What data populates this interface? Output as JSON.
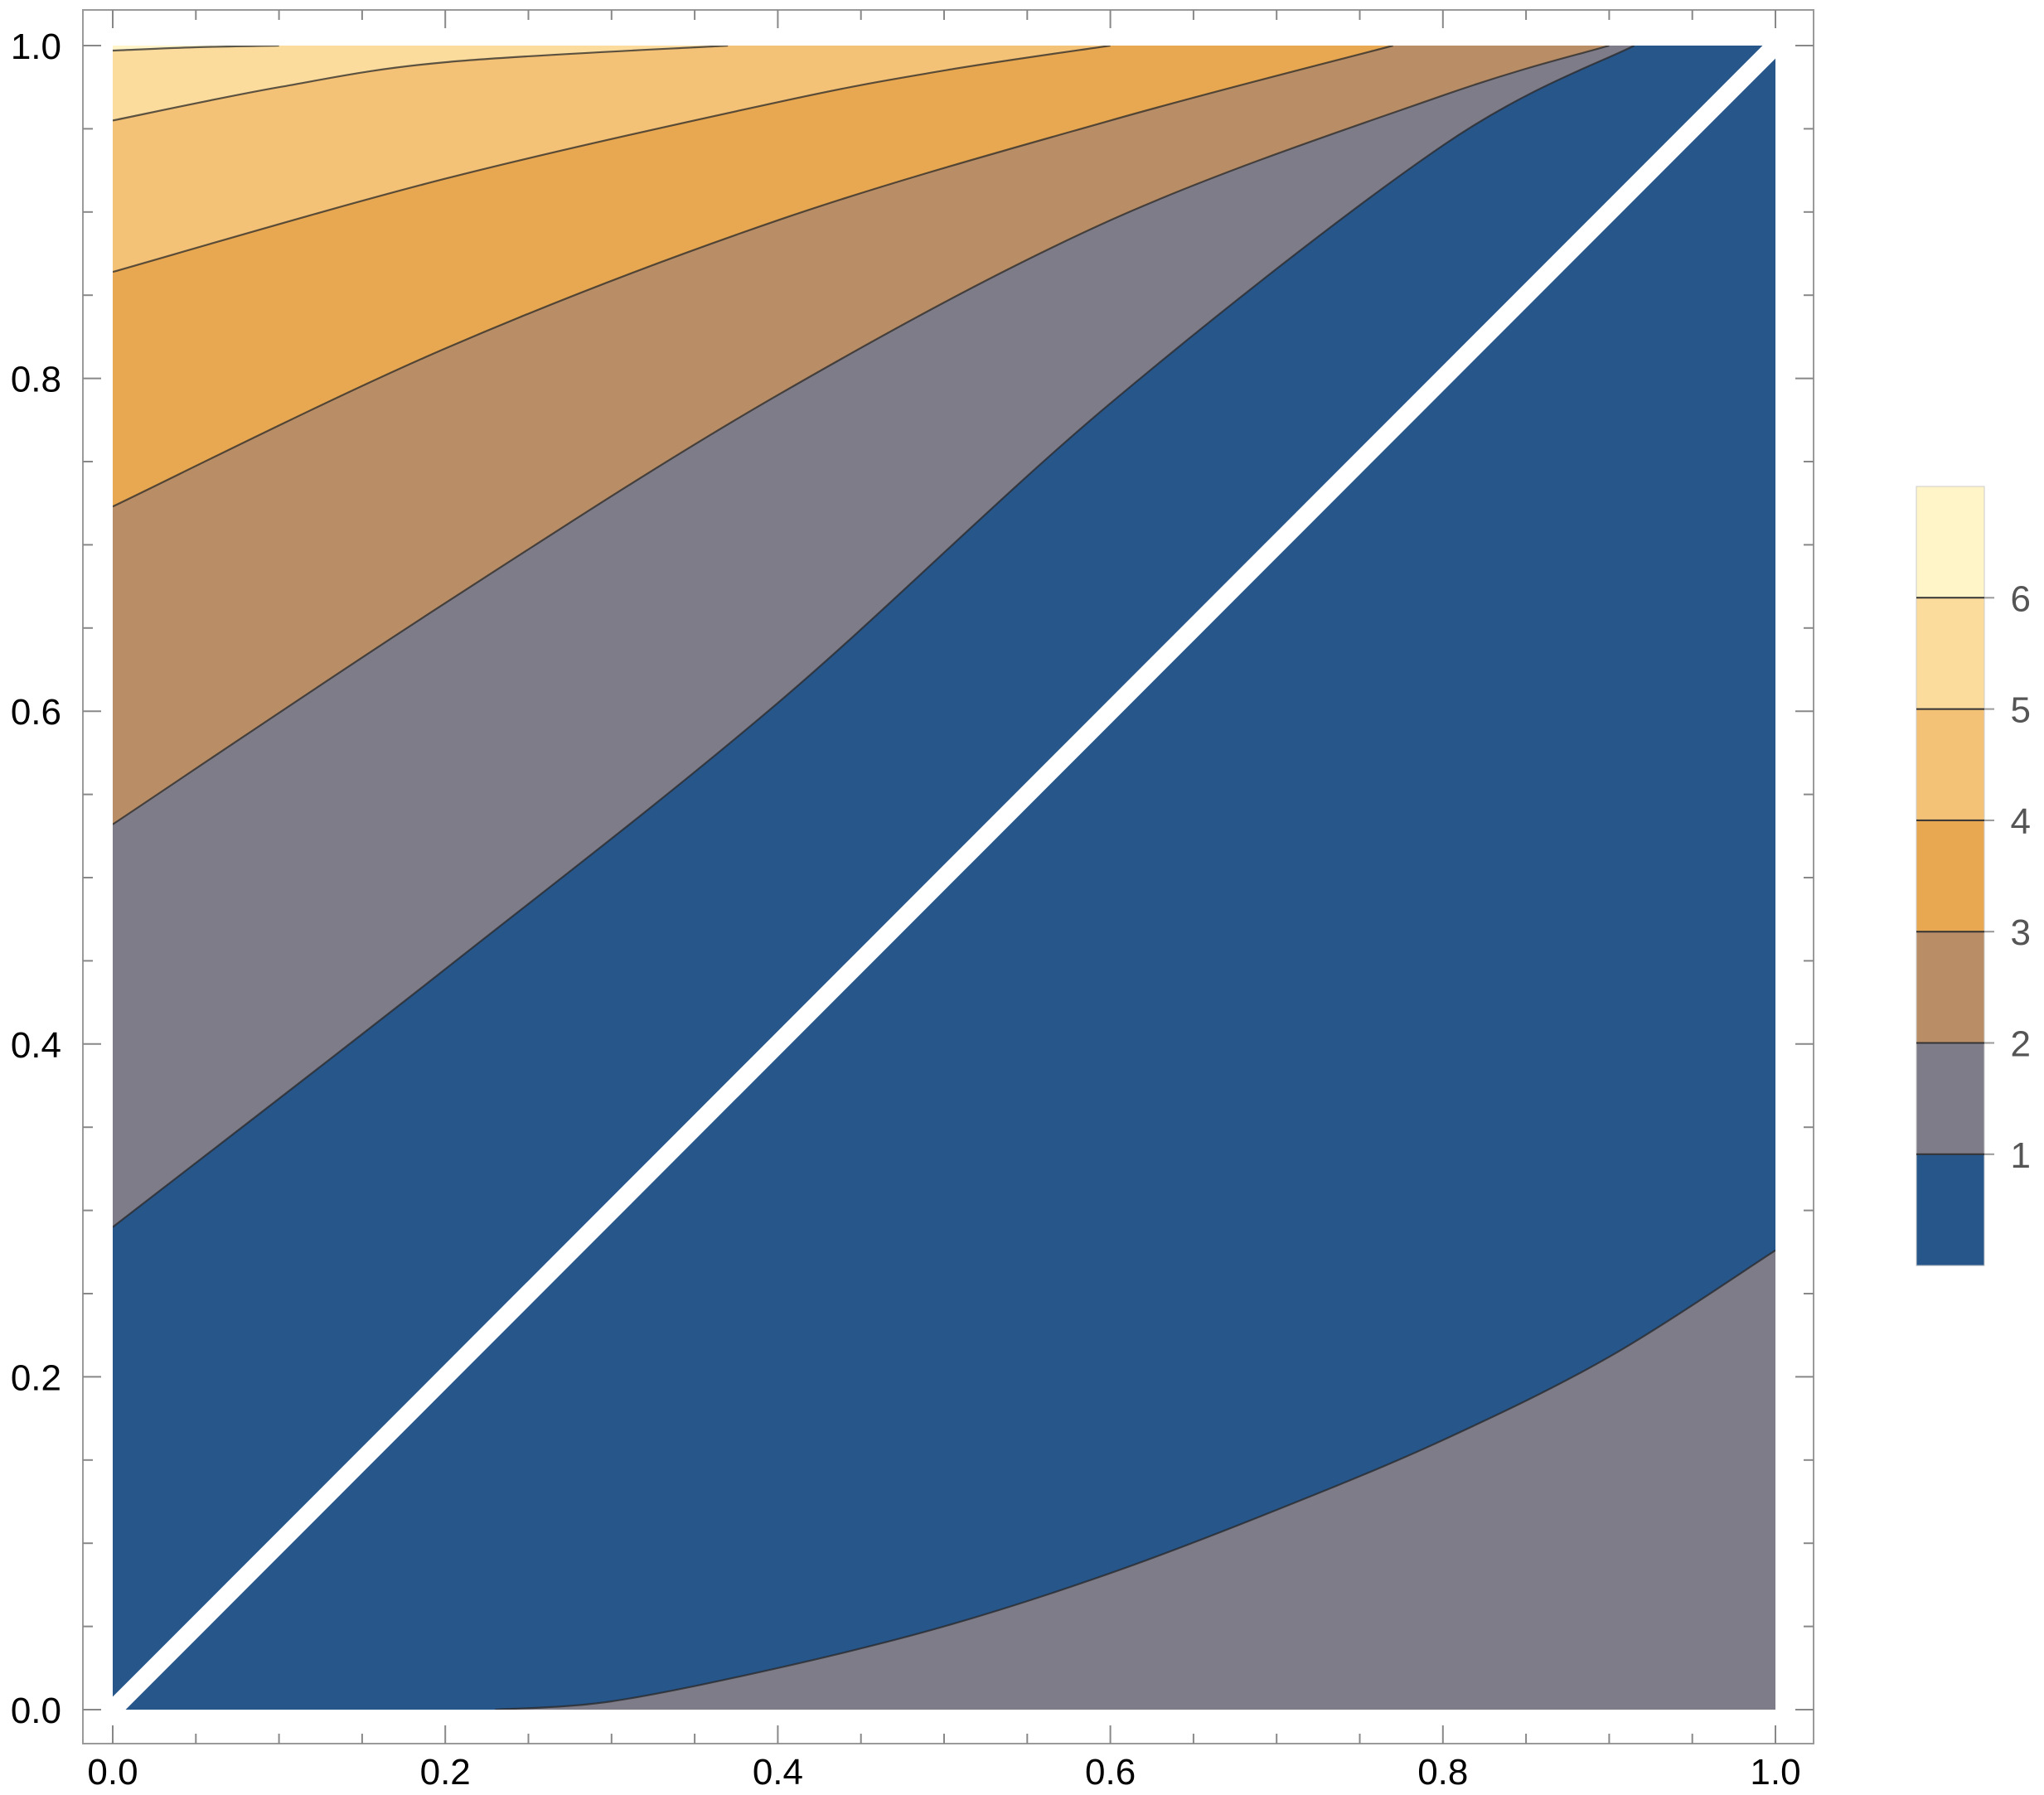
{
  "chart_data": {
    "type": "contour",
    "title": "",
    "xlabel": "",
    "ylabel": "",
    "xlim": [
      0,
      1
    ],
    "ylim": [
      0,
      1
    ],
    "x_ticks": [
      "0.0",
      "0.2",
      "0.4",
      "0.6",
      "0.8",
      "1.0"
    ],
    "y_ticks": [
      "0.0",
      "0.2",
      "0.4",
      "0.6",
      "0.8",
      "1.0"
    ],
    "grid": false,
    "contour_levels": [
      1,
      2,
      3,
      4,
      5,
      6
    ],
    "band_colors": [
      "#27568b",
      "#7e7c89",
      "#b98e66",
      "#e8a852",
      "#f4c277",
      "#fcdc9c",
      "#fff5c9"
    ],
    "contour_lines": [
      {
        "level": 1,
        "points": [
          [
            0,
            0.29
          ],
          [
            0.2,
            0.445
          ],
          [
            0.4,
            0.605
          ],
          [
            0.6,
            0.785
          ],
          [
            0.8,
            0.94
          ],
          [
            0.915,
            1
          ]
        ]
      },
      {
        "level": 2,
        "points": [
          [
            0,
            0.532
          ],
          [
            0.2,
            0.665
          ],
          [
            0.4,
            0.79
          ],
          [
            0.6,
            0.895
          ],
          [
            0.8,
            0.97
          ],
          [
            0.9,
            1
          ]
        ]
      },
      {
        "level": 3,
        "points": [
          [
            0,
            0.723
          ],
          [
            0.2,
            0.818
          ],
          [
            0.4,
            0.895
          ],
          [
            0.6,
            0.955
          ],
          [
            0.77,
            1
          ]
        ]
      },
      {
        "level": 4,
        "points": [
          [
            0,
            0.864
          ],
          [
            0.2,
            0.92
          ],
          [
            0.4,
            0.966
          ],
          [
            0.5,
            0.985
          ],
          [
            0.6,
            1
          ]
        ]
      },
      {
        "level": 5,
        "points": [
          [
            0,
            0.955
          ],
          [
            0.1,
            0.975
          ],
          [
            0.2,
            0.99
          ],
          [
            0.37,
            1
          ]
        ]
      },
      {
        "level": 6,
        "points": [
          [
            0,
            0.997
          ],
          [
            0.05,
            0.999
          ],
          [
            0.1,
            1
          ]
        ]
      },
      {
        "level": 1,
        "points": [
          [
            0.23,
            0
          ],
          [
            0.3,
            0.005
          ],
          [
            0.4,
            0.025
          ],
          [
            0.5,
            0.05
          ],
          [
            0.6,
            0.082
          ],
          [
            0.7,
            0.12
          ],
          [
            0.8,
            0.162
          ],
          [
            0.9,
            0.212
          ],
          [
            1.0,
            0.276
          ]
        ]
      }
    ],
    "diagonal_line": [
      [
        0,
        0
      ],
      [
        1,
        1
      ]
    ],
    "legend": {
      "position": "right",
      "labels": [
        "1",
        "2",
        "3",
        "4",
        "5",
        "6"
      ]
    }
  }
}
